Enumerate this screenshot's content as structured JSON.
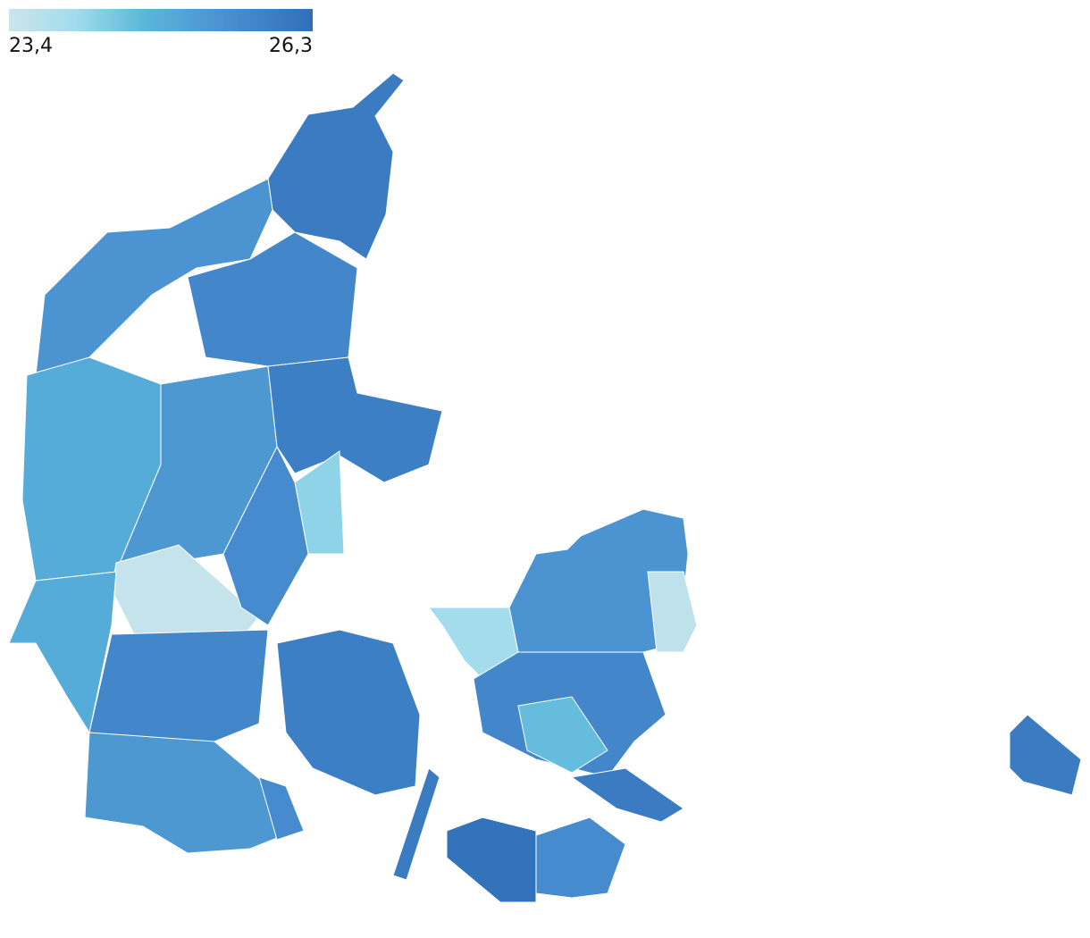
{
  "chart_data": {
    "type": "choropleth",
    "scale": {
      "min": {
        "value": 23.4,
        "label": "23,4"
      },
      "max": {
        "value": 26.3,
        "label": "26,3"
      }
    },
    "values": [
      26.0,
      25.4,
      25.7,
      24.9,
      25.3,
      23.5,
      25.9,
      24.2,
      25.6,
      24.9,
      25.7,
      25.3,
      25.9,
      24.0,
      25.4,
      23.6,
      25.7,
      24.6,
      26.2,
      25.6,
      26.0,
      26.0,
      26.0,
      25.6
    ]
  }
}
